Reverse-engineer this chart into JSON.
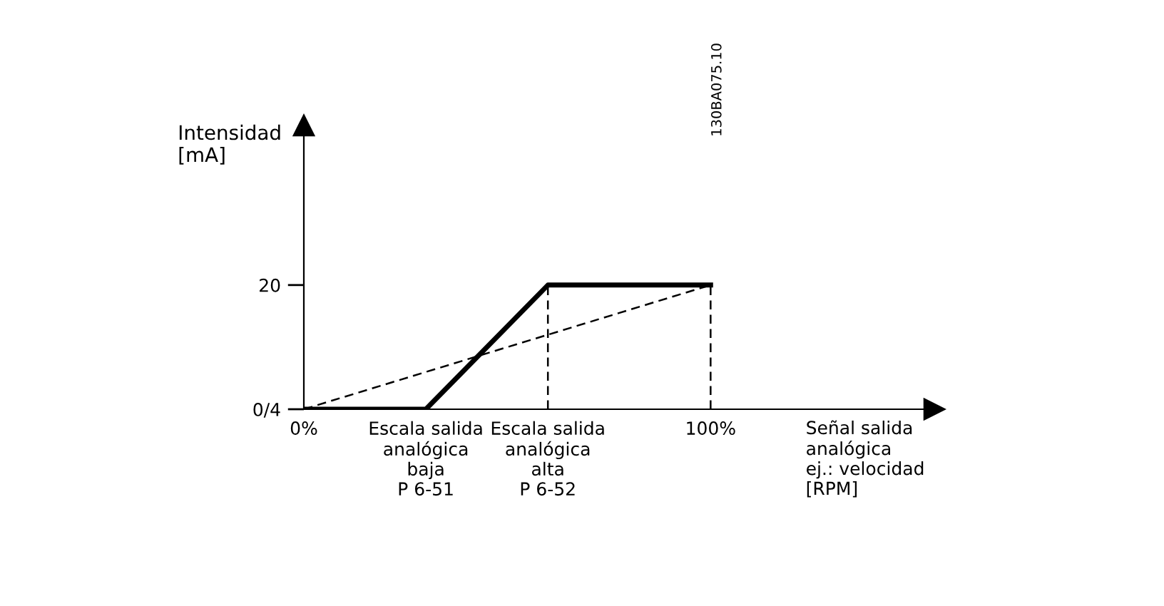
{
  "chart_data": {
    "type": "line",
    "xlabel": "Señal salida\nanalógica\nej.: velocidad\n[RPM]",
    "ylabel": "Intensidad\n[mA]",
    "annotations": [
      "130BA075.10"
    ],
    "xlim": [
      0,
      155
    ],
    "ylim": [
      0,
      45.7
    ],
    "xticks": [
      {
        "value": 0,
        "label": "0%"
      },
      {
        "value": 30,
        "label": "Escala salida\nanalógica\nbaja\nP 6-51"
      },
      {
        "value": 60,
        "label": "Escala salida\nanalógica\nalta\nP 6-52"
      },
      {
        "value": 100,
        "label": "100%"
      }
    ],
    "yticks": [
      {
        "value": 0,
        "label": "0/4"
      },
      20
    ],
    "grid": false,
    "legend": false,
    "marker": "none",
    "series": [
      {
        "x": [
          0,
          30,
          60,
          100
        ],
        "values": [
          0,
          0,
          20,
          20
        ],
        "color": "#000000",
        "line_style": "solid"
      },
      {
        "x": [
          0,
          100
        ],
        "values": [
          0,
          20
        ],
        "color": "#000000",
        "line_style": "dashed"
      }
    ],
    "ref_lines": [
      {
        "axis": "x",
        "value": 60,
        "label": null,
        "color": "#000000",
        "line_style": "dashed"
      },
      {
        "axis": "x",
        "value": 100,
        "label": null,
        "color": "#000000",
        "line_style": "dashed"
      }
    ]
  }
}
